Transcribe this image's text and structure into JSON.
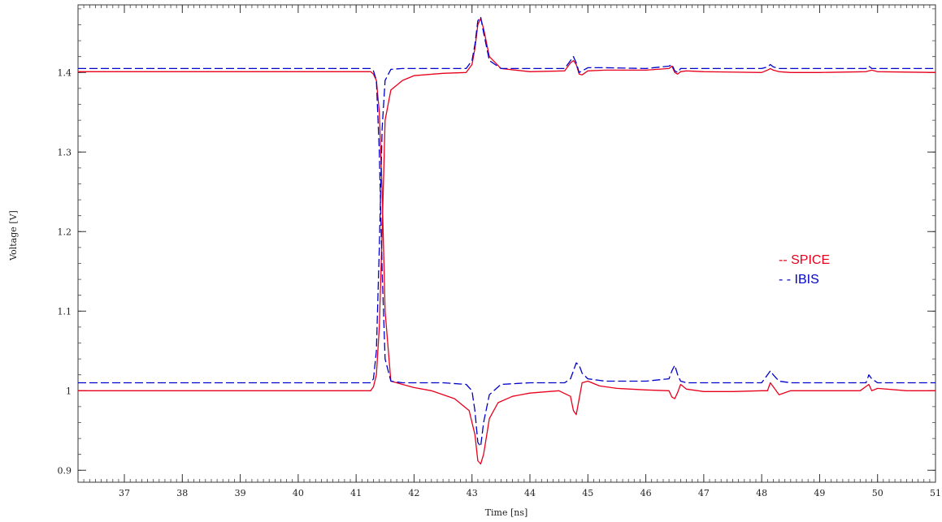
{
  "chart_data": {
    "type": "line",
    "title": "",
    "xlabel": "Time [ns]",
    "ylabel": "Voltage [V]",
    "xlim": [
      36.2,
      51.0
    ],
    "ylim": [
      0.885,
      1.485
    ],
    "x_ticks": [
      37,
      38,
      39,
      40,
      41,
      42,
      43,
      44,
      45,
      46,
      47,
      48,
      49,
      50,
      51
    ],
    "y_ticks": [
      0.9,
      1,
      1.1,
      1.2,
      1.3,
      1.4
    ],
    "x_tick_labels": [
      "37",
      "38",
      "39",
      "40",
      "41",
      "42",
      "43",
      "44",
      "45",
      "46",
      "47",
      "48",
      "49",
      "50",
      "51"
    ],
    "y_tick_labels": [
      "0.9",
      "1",
      "1.1",
      "1.2",
      "1.3",
      "1.4"
    ],
    "grid": false,
    "legend": {
      "placement": "right",
      "entries": [
        {
          "label": "-- SPICE",
          "color": "#e8001c"
        },
        {
          "label": "- - IBIS",
          "color": "#0000cc"
        }
      ]
    },
    "series": [
      {
        "name": "SPICE",
        "color": "#e8001c",
        "style": "solid",
        "x": [
          36.2,
          41.25,
          41.3,
          41.35,
          41.4,
          41.45,
          41.5,
          41.6,
          41.8,
          42.0,
          42.3,
          42.7,
          42.95,
          43.05,
          43.1,
          43.15,
          43.2,
          43.3,
          43.45,
          43.7,
          44.0,
          44.5,
          44.7,
          44.75,
          44.8,
          44.85,
          44.9,
          45.0,
          45.2,
          45.5,
          46.0,
          46.4,
          46.45,
          46.5,
          46.55,
          46.6,
          46.7,
          47.0,
          47.5,
          48.0,
          48.1,
          48.15,
          48.2,
          48.3,
          48.5,
          49.0,
          49.7,
          49.85,
          49.9,
          50.0,
          50.5,
          51.0
        ],
        "y": [
          1.401,
          1.401,
          1.398,
          1.39,
          1.35,
          1.25,
          1.1,
          1.012,
          1.008,
          1.004,
          1.0,
          0.99,
          0.975,
          0.945,
          0.912,
          0.908,
          0.92,
          0.965,
          0.985,
          0.993,
          0.997,
          1.0,
          0.993,
          0.975,
          0.97,
          0.99,
          1.01,
          1.012,
          1.006,
          1.003,
          1.001,
          1.0,
          0.992,
          0.99,
          0.998,
          1.008,
          1.002,
          0.999,
          0.999,
          1.0,
          1.0,
          1.01,
          1.005,
          0.995,
          1.0,
          1.0,
          1.0,
          1.008,
          1.0,
          1.003,
          1.0,
          1.0
        ]
      },
      {
        "name": "SPICE",
        "color": "#e8001c",
        "style": "solid",
        "x": [
          36.2,
          41.25,
          41.3,
          41.35,
          41.4,
          41.45,
          41.5,
          41.6,
          41.8,
          42.0,
          42.5,
          42.9,
          43.0,
          43.05,
          43.1,
          43.15,
          43.2,
          43.3,
          43.5,
          44.0,
          44.6,
          44.7,
          44.75,
          44.8,
          44.85,
          44.9,
          45.0,
          45.3,
          46.0,
          46.4,
          46.45,
          46.5,
          46.55,
          46.6,
          46.7,
          47.0,
          48.0,
          48.1,
          48.15,
          48.2,
          48.3,
          48.5,
          49.0,
          49.8,
          49.9,
          50.0,
          51.0
        ],
        "y": [
          1.0,
          1.0,
          1.005,
          1.02,
          1.08,
          1.2,
          1.34,
          1.378,
          1.39,
          1.396,
          1.399,
          1.4,
          1.41,
          1.43,
          1.46,
          1.468,
          1.455,
          1.42,
          1.405,
          1.401,
          1.402,
          1.412,
          1.415,
          1.41,
          1.398,
          1.397,
          1.402,
          1.403,
          1.403,
          1.405,
          1.408,
          1.4,
          1.398,
          1.401,
          1.402,
          1.401,
          1.4,
          1.403,
          1.405,
          1.403,
          1.401,
          1.4,
          1.4,
          1.401,
          1.403,
          1.401,
          1.4
        ]
      },
      {
        "name": "IBIS",
        "color": "#0000cc",
        "style": "dashed",
        "x": [
          36.2,
          41.25,
          41.3,
          41.35,
          41.4,
          41.45,
          41.5,
          41.6,
          41.8,
          42.5,
          42.9,
          43.0,
          43.05,
          43.1,
          43.15,
          43.2,
          43.3,
          43.5,
          44.0,
          44.6,
          44.7,
          44.75,
          44.8,
          44.85,
          44.9,
          45.0,
          45.3,
          46.0,
          46.4,
          46.45,
          46.5,
          46.55,
          46.6,
          46.7,
          47.0,
          48.0,
          48.1,
          48.15,
          48.2,
          48.3,
          48.5,
          49.0,
          49.8,
          49.85,
          49.9,
          50.0,
          51.0
        ],
        "y": [
          1.405,
          1.405,
          1.402,
          1.39,
          1.3,
          1.15,
          1.04,
          1.012,
          1.01,
          1.01,
          1.008,
          1.0,
          0.975,
          0.935,
          0.93,
          0.96,
          0.995,
          1.008,
          1.01,
          1.01,
          1.015,
          1.025,
          1.035,
          1.032,
          1.022,
          1.015,
          1.012,
          1.012,
          1.015,
          1.025,
          1.032,
          1.02,
          1.012,
          1.01,
          1.01,
          1.01,
          1.02,
          1.025,
          1.02,
          1.012,
          1.01,
          1.01,
          1.01,
          1.02,
          1.015,
          1.01,
          1.01
        ]
      },
      {
        "name": "IBIS",
        "color": "#0000cc",
        "style": "dashed",
        "x": [
          36.2,
          41.25,
          41.3,
          41.35,
          41.4,
          41.45,
          41.5,
          41.6,
          41.8,
          42.9,
          43.0,
          43.05,
          43.1,
          43.15,
          43.2,
          43.3,
          43.5,
          44.0,
          44.6,
          44.7,
          44.75,
          44.8,
          44.85,
          44.9,
          45.0,
          45.3,
          46.0,
          46.4,
          46.45,
          46.5,
          46.55,
          46.6,
          46.7,
          47.0,
          48.0,
          48.1,
          48.15,
          48.2,
          48.3,
          48.5,
          49.0,
          49.8,
          49.85,
          49.9,
          50.0,
          51.0
        ],
        "y": [
          1.01,
          1.01,
          1.015,
          1.05,
          1.18,
          1.33,
          1.39,
          1.404,
          1.405,
          1.405,
          1.415,
          1.435,
          1.465,
          1.47,
          1.45,
          1.415,
          1.405,
          1.405,
          1.405,
          1.415,
          1.42,
          1.412,
          1.4,
          1.402,
          1.406,
          1.406,
          1.405,
          1.408,
          1.41,
          1.402,
          1.4,
          1.405,
          1.405,
          1.405,
          1.405,
          1.407,
          1.41,
          1.407,
          1.405,
          1.405,
          1.405,
          1.405,
          1.408,
          1.405,
          1.405,
          1.405
        ]
      }
    ]
  }
}
